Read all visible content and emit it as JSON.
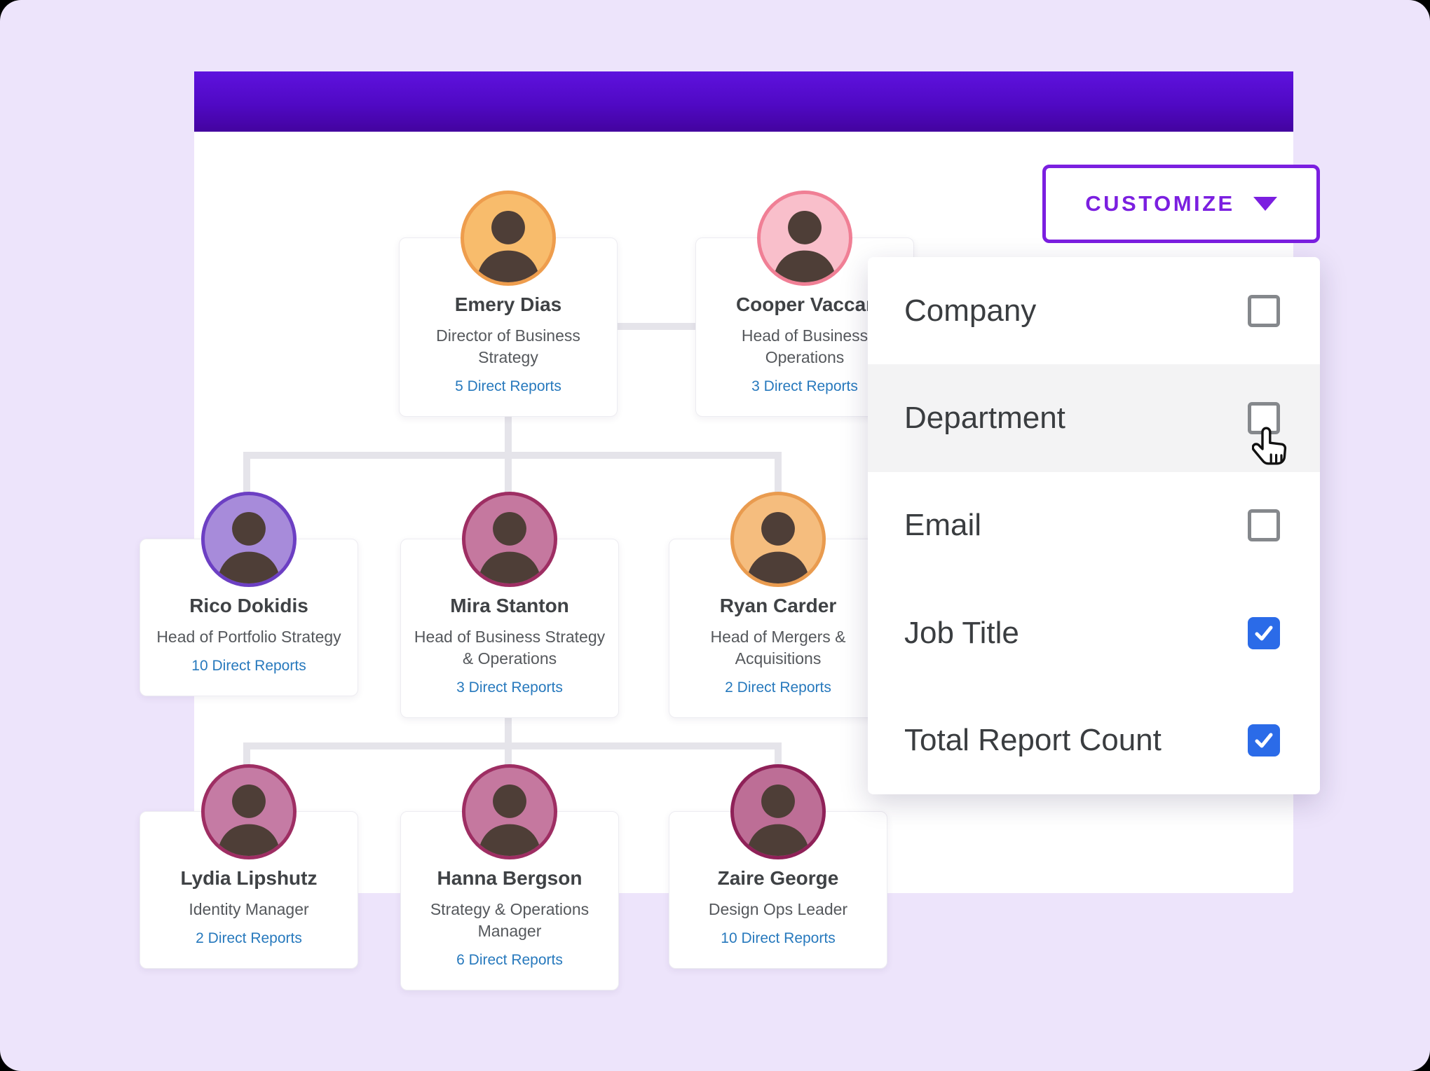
{
  "customize_button": {
    "label": "CUSTOMIZE"
  },
  "dropdown": {
    "items": [
      {
        "id": "company",
        "label": "Company",
        "checked": false,
        "hovered": false
      },
      {
        "id": "department",
        "label": "Department",
        "checked": false,
        "hovered": true
      },
      {
        "id": "email",
        "label": "Email",
        "checked": false,
        "hovered": false
      },
      {
        "id": "job-title",
        "label": "Job Title",
        "checked": true,
        "hovered": false
      },
      {
        "id": "total-report-count",
        "label": "Total Report Count",
        "checked": true,
        "hovered": false
      }
    ],
    "checked_color": "#2B6BE8",
    "unchecked_border_color": "#85888C"
  },
  "org_chart": {
    "people": [
      {
        "id": "emery",
        "name": "Emery Dias",
        "title": "Director of Business Strategy",
        "reports": "5 Direct Reports",
        "avatar_bg": "#F8BC6C",
        "avatar_border": "#EE9D4D"
      },
      {
        "id": "cooper",
        "name": "Cooper Vaccar",
        "title": "Head of Business Operations",
        "reports": "3 Direct Reports",
        "avatar_bg": "#F9BFCB",
        "avatar_border": "#F07F95"
      },
      {
        "id": "rico",
        "name": "Rico Dokidis",
        "title": "Head of Portfolio Strategy",
        "reports": "10 Direct Reports",
        "avatar_bg": "#A78BDA",
        "avatar_border": "#6C3FC3"
      },
      {
        "id": "mira",
        "name": "Mira Stanton",
        "title": "Head of Business Strategy & Operations",
        "reports": "3 Direct Reports",
        "avatar_bg": "#C5789F",
        "avatar_border": "#9E2E63"
      },
      {
        "id": "ryan",
        "name": "Ryan Carder",
        "title": "Head of Mergers & Acquisitions",
        "reports": "2 Direct Reports",
        "avatar_bg": "#F5BD7E",
        "avatar_border": "#E99B4F"
      },
      {
        "id": "lydia",
        "name": "Lydia Lipshutz",
        "title": "Identity Manager",
        "reports": "2 Direct Reports",
        "avatar_bg": "#C57BA4",
        "avatar_border": "#9E2E63"
      },
      {
        "id": "hanna",
        "name": "Hanna Bergson",
        "title": "Strategy & Operations Manager",
        "reports": "6 Direct Reports",
        "avatar_bg": "#C5789F",
        "avatar_border": "#9E2E63"
      },
      {
        "id": "zaire",
        "name": "Zaire George",
        "title": "Design Ops Leader",
        "reports": "10 Direct Reports",
        "avatar_bg": "#BD6E96",
        "avatar_border": "#8F2158"
      }
    ],
    "link_color": "#2779BD",
    "header_gradient_top": "#5E12DE",
    "header_gradient_bottom": "#43039F",
    "accent_purple": "#7B1FE0",
    "background_color": "#EDE4FB"
  }
}
